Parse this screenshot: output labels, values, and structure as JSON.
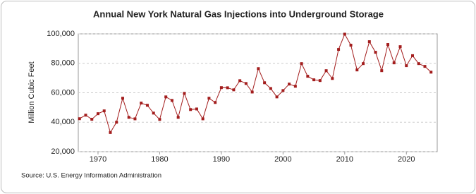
{
  "chart_data": {
    "type": "line",
    "title": "Annual New York Natural Gas Injections into Underground Storage",
    "y_label": "Million Cubic Feet",
    "source": "Source: U.S. Energy Information Administration",
    "x": [
      1967,
      1968,
      1969,
      1970,
      1971,
      1972,
      1973,
      1974,
      1975,
      1976,
      1977,
      1978,
      1979,
      1980,
      1981,
      1982,
      1983,
      1984,
      1985,
      1986,
      1987,
      1988,
      1989,
      1990,
      1991,
      1992,
      1993,
      1994,
      1995,
      1996,
      1997,
      1998,
      1999,
      2000,
      2001,
      2002,
      2003,
      2004,
      2005,
      2006,
      2007,
      2008,
      2009,
      2010,
      2011,
      2012,
      2013,
      2014,
      2015,
      2016,
      2017,
      2018,
      2019,
      2020,
      2021,
      2022,
      2023,
      2024
    ],
    "series": [
      {
        "name": "New York",
        "color": "#a31d1d",
        "values": [
          42400,
          44800,
          42000,
          45800,
          47700,
          33000,
          40000,
          56300,
          43300,
          42300,
          53000,
          51500,
          46200,
          41900,
          57200,
          54800,
          43300,
          59600,
          48600,
          49000,
          42300,
          56300,
          53400,
          63500,
          63400,
          62000,
          68200,
          66300,
          60500,
          76400,
          66800,
          62900,
          57200,
          61500,
          65900,
          64400,
          79800,
          71200,
          68800,
          68300,
          75000,
          69700,
          89400,
          99800,
          92300,
          75500,
          79800,
          94700,
          87500,
          75000,
          92800,
          80300,
          91300,
          78400,
          85200,
          79800,
          77900,
          74000
        ]
      }
    ],
    "xlim": [
      1966.8,
      2025
    ],
    "xticks": [
      1970,
      1980,
      1990,
      2000,
      2010,
      2020
    ],
    "ylim": [
      20000,
      100000
    ],
    "yticks": [
      {
        "value": 20000,
        "label": "20,000"
      },
      {
        "value": 40000,
        "label": "40,000"
      },
      {
        "value": 60000,
        "label": "60,000"
      },
      {
        "value": 80000,
        "label": "80,000"
      },
      {
        "value": 100000,
        "label": "100,000"
      }
    ],
    "grid": true
  }
}
